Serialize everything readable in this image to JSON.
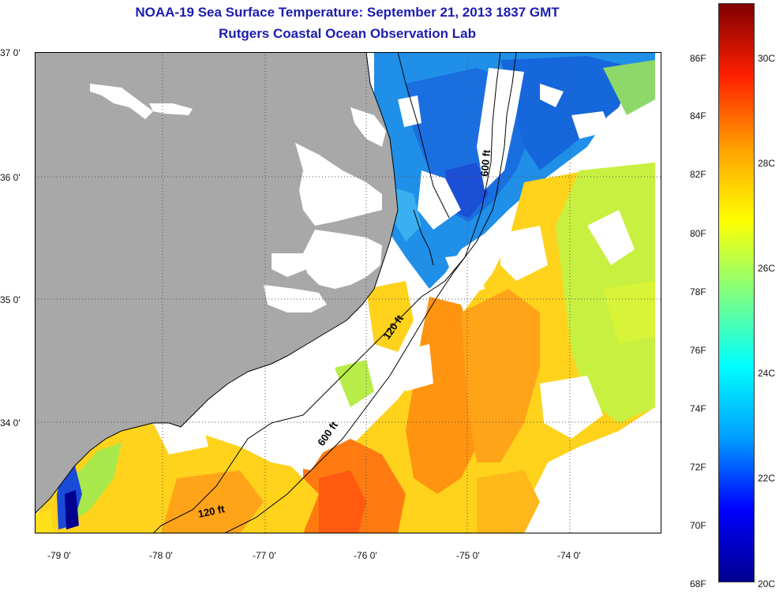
{
  "header": {
    "title": "NOAA-19 Sea Surface Temperature:  September 21, 2013 1837 GMT",
    "subtitle": "Rutgers Coastal Ocean Observation Lab"
  },
  "map": {
    "lat_labels": [
      "37 0'",
      "36 0'",
      "35 0'",
      "34 0'"
    ],
    "lon_labels": [
      "-79 0'",
      "-78 0'",
      "-77 0'",
      "-76 0'",
      "-75 0'",
      "-74 0'"
    ],
    "isobaths": [
      "120 ft",
      "600 ft",
      "120 ft",
      "600 ft"
    ]
  },
  "colorbar": {
    "fahrenheit_labels": [
      "86F",
      "84F",
      "82F",
      "80F",
      "78F",
      "76F",
      "74F",
      "72F",
      "70F",
      "68F"
    ],
    "celsius_labels": [
      "30C",
      "28C",
      "26C",
      "24C",
      "22C",
      "20C"
    ],
    "colors": [
      "#00008f",
      "#0000ff",
      "#00a0ff",
      "#00ffff",
      "#80ff80",
      "#ffff00",
      "#ffa000",
      "#ff2000",
      "#800000"
    ]
  }
}
